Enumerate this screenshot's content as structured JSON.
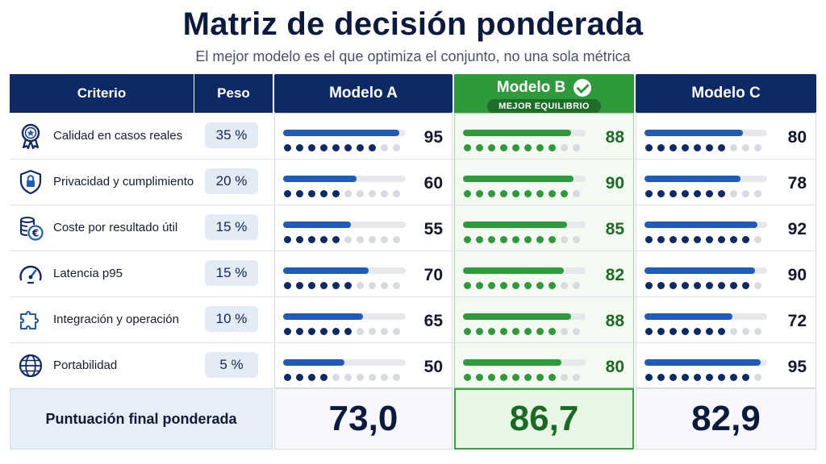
{
  "title": "Matriz de decisión ponderada",
  "subtitle": "El mejor modelo es el que optimiza el conjunto, no una sola métrica",
  "header": {
    "criterio": "Criterio",
    "peso": "Peso",
    "best_badge": "MEJOR EQUILIBRIO"
  },
  "colors": {
    "navy": "#0d2a66",
    "blue_bar": "#1f5bb8",
    "green": "#2f9a3c",
    "green_text": "#1e6b25",
    "navy_dot": "#0d2a66"
  },
  "chart_data": {
    "type": "table",
    "criteria": [
      {
        "label": "Calidad en casos reales",
        "weight": "35 %",
        "icon": "award-ribbon-icon"
      },
      {
        "label": "Privacidad y cumplimiento",
        "weight": "20 %",
        "icon": "shield-lock-icon"
      },
      {
        "label": "Coste por resultado útil",
        "weight": "15 %",
        "icon": "coins-euro-icon"
      },
      {
        "label": "Latencia p95",
        "weight": "15 %",
        "icon": "gauge-icon"
      },
      {
        "label": "Integración y operación",
        "weight": "10 %",
        "icon": "puzzle-icon"
      },
      {
        "label": "Portabilidad",
        "weight": "5 %",
        "icon": "globe-icon"
      }
    ],
    "dots_max": 10,
    "models": [
      {
        "name": "Modelo A",
        "scores": [
          95,
          60,
          55,
          70,
          65,
          50
        ],
        "dots": [
          8,
          5,
          5,
          6,
          6,
          4
        ],
        "final": "73,0",
        "highlight": false
      },
      {
        "name": "Modelo B",
        "scores": [
          88,
          90,
          85,
          82,
          88,
          80
        ],
        "dots": [
          8,
          9,
          8,
          8,
          8,
          8
        ],
        "final": "86,7",
        "highlight": true
      },
      {
        "name": "Modelo C",
        "scores": [
          80,
          78,
          92,
          90,
          72,
          95
        ],
        "dots": [
          7,
          7,
          9,
          9,
          7,
          9
        ],
        "final": "82,9",
        "highlight": false
      }
    ],
    "final_label": "Puntuación final ponderada"
  }
}
